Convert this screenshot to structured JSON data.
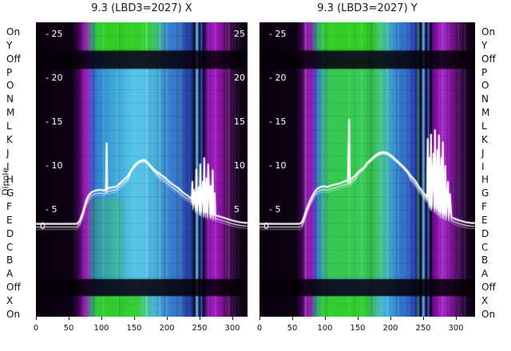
{
  "titles": {
    "left": "9.3 (LBD3=2027) X",
    "right": "9.3 (LBD3=2027) Y"
  },
  "axis": {
    "dipole_label": "Dipole",
    "row_labels": [
      "On",
      "Y",
      "Off",
      "P",
      "O",
      "N",
      "M",
      "L",
      "K",
      "J",
      "I",
      "H",
      "G",
      "F",
      "E",
      "D",
      "C",
      "B",
      "A",
      "Off",
      "X",
      "On"
    ],
    "x_ticks": [
      "0",
      "50",
      "100",
      "150",
      "200",
      "250",
      "300"
    ]
  },
  "scale_labels": {
    "left_panel_left": [
      "- 25",
      "- 20",
      "- 15",
      "- 10",
      "- 5",
      "0"
    ],
    "left_panel_right": [
      "25",
      "20",
      "15",
      "10",
      "5"
    ],
    "right_panel_left": [
      "- 25",
      "- 20",
      "- 15",
      "- 10",
      "- 5",
      "0"
    ]
  },
  "colors": {
    "trace": "#ffffff",
    "green": "#31d01c",
    "title_text": "#1a1a1a",
    "label_text": "#111111",
    "scale_text": "#ffffff",
    "page_bg": "#ffffff"
  },
  "chart_data": {
    "type": "heatmap",
    "description": "Two heatmap panels (X and Y planes) with overlaid white loss traces; y axis is categorical dipole rows, x axis 0-300+, internal scale 0-25",
    "x_ticks": [
      0,
      50,
      100,
      150,
      200,
      250,
      300
    ],
    "scale_ticks": [
      25,
      20,
      15,
      10,
      5,
      0
    ],
    "y_categories": [
      "On",
      "Y",
      "Off",
      "P",
      "O",
      "N",
      "M",
      "L",
      "K",
      "J",
      "I",
      "H",
      "G",
      "F",
      "E",
      "D",
      "C",
      "B",
      "A",
      "Off",
      "X",
      "On"
    ],
    "ylabel": "Dipole",
    "panels": [
      {
        "title": "9.3 (LBD3=2027) X",
        "trace": {
          "name": "loss-trace-x",
          "points": [
            [
              0,
              3.3
            ],
            [
              40,
              3.3
            ],
            [
              63,
              3.3
            ],
            [
              67,
              3.7
            ],
            [
              71,
              4.5
            ],
            [
              76,
              5.8
            ],
            [
              80,
              6.5
            ],
            [
              85,
              6.9
            ],
            [
              91,
              7.1
            ],
            [
              98,
              7.2
            ],
            [
              104,
              7.1
            ],
            [
              107,
              7.3
            ],
            [
              108,
              12.5
            ],
            [
              109,
              7.3
            ],
            [
              116,
              7.5
            ],
            [
              122,
              7.5
            ],
            [
              128,
              7.9
            ],
            [
              134,
              8.3
            ],
            [
              140,
              8.7
            ],
            [
              146,
              9.5
            ],
            [
              152,
              10.1
            ],
            [
              159,
              10.5
            ],
            [
              165,
              10.6
            ],
            [
              168,
              10.5
            ],
            [
              173,
              10.1
            ],
            [
              180,
              9.5
            ],
            [
              189,
              9.0
            ],
            [
              198,
              8.5
            ],
            [
              207,
              7.9
            ],
            [
              217,
              7.4
            ],
            [
              226,
              6.8
            ],
            [
              234,
              6.4
            ],
            [
              238,
              6.1
            ],
            [
              239,
              8.1
            ],
            [
              240,
              5.5
            ],
            [
              241,
              7.2
            ],
            [
              244,
              5.2
            ],
            [
              245,
              9.5
            ],
            [
              246,
              5.0
            ],
            [
              249,
              7.5
            ],
            [
              250,
              4.8
            ],
            [
              251,
              10.1
            ],
            [
              252,
              4.8
            ],
            [
              255,
              8.1
            ],
            [
              256,
              4.6
            ],
            [
              257,
              10.8
            ],
            [
              259,
              4.6
            ],
            [
              261,
              8.5
            ],
            [
              262,
              4.5
            ],
            [
              263,
              10.1
            ],
            [
              266,
              4.5
            ],
            [
              267,
              7.6
            ],
            [
              268,
              4.4
            ],
            [
              270,
              9.4
            ],
            [
              271,
              4.3
            ],
            [
              273,
              6.8
            ],
            [
              274,
              4.3
            ],
            [
              278,
              4.2
            ],
            [
              287,
              4.0
            ],
            [
              299,
              3.7
            ],
            [
              311,
              3.5
            ],
            [
              323,
              3.4
            ]
          ]
        },
        "heatmap_style": {
          "x_gradient": [
            [
              0,
              "#08010b"
            ],
            [
              0.17,
              "#0e0214"
            ],
            [
              0.2,
              "#3a0748"
            ],
            [
              0.225,
              "#8a10a8"
            ],
            [
              0.245,
              "#a818c0"
            ],
            [
              0.265,
              "#3c55c8"
            ],
            [
              0.3,
              "#2f86d0"
            ],
            [
              0.38,
              "#43aede"
            ],
            [
              0.47,
              "#55c4ea"
            ],
            [
              0.56,
              "#49b2e0"
            ],
            [
              0.63,
              "#3884d2"
            ],
            [
              0.69,
              "#2e56be"
            ],
            [
              0.73,
              "#2738a8"
            ],
            [
              0.75,
              "#101268"
            ],
            [
              0.765,
              "#4f9ae8"
            ],
            [
              0.78,
              "#140c52"
            ],
            [
              0.8,
              "#5c0b86"
            ],
            [
              0.835,
              "#a315c2"
            ],
            [
              0.87,
              "#8d12a8"
            ],
            [
              0.91,
              "#4c0758"
            ],
            [
              0.95,
              "#1e0324"
            ],
            [
              1,
              "#07010a"
            ]
          ],
          "green_regions": [
            {
              "x0": 0.23,
              "x1": 0.62,
              "y0": 0.0,
              "y1": 0.103,
              "alpha": 0.95
            },
            {
              "x0": 0.23,
              "x1": 0.56,
              "y0": 0.93,
              "y1": 1.0,
              "alpha": 0.9
            },
            {
              "x0": 0.235,
              "x1": 0.44,
              "y0": 0.6,
              "y1": 0.87,
              "alpha": 0.28
            }
          ],
          "dark_rows": [
            {
              "y0": 0.096,
              "y1": 0.158,
              "alpha": 0.87
            },
            {
              "y0": 0.872,
              "y1": 0.93,
              "alpha": 0.87
            }
          ],
          "stripes": [
            [
              0.742,
              0.01,
              "#05030f",
              0.85
            ],
            [
              0.757,
              0.006,
              "#6db6f2",
              0.9
            ],
            [
              0.768,
              0.008,
              "#070530",
              0.85
            ],
            [
              0.78,
              0.005,
              "#4a8fe0",
              0.8
            ],
            [
              0.789,
              0.01,
              "#05030f",
              0.85
            ],
            [
              0.315,
              0.008,
              "#9fe8fa",
              0.22
            ],
            [
              0.52,
              0.005,
              "#ffffff",
              0.15
            ]
          ]
        }
      },
      {
        "title": "9.3 (LBD3=2027) Y",
        "trace": {
          "name": "loss-trace-y",
          "points": [
            [
              0,
              3.3
            ],
            [
              40,
              3.3
            ],
            [
              61,
              3.3
            ],
            [
              65,
              3.5
            ],
            [
              68,
              4.1
            ],
            [
              73,
              5.2
            ],
            [
              78,
              6.1
            ],
            [
              83,
              6.8
            ],
            [
              88,
              7.3
            ],
            [
              93,
              7.5
            ],
            [
              98,
              7.6
            ],
            [
              104,
              7.5
            ],
            [
              110,
              7.7
            ],
            [
              116,
              7.8
            ],
            [
              122,
              7.9
            ],
            [
              128,
              8.1
            ],
            [
              132,
              8.2
            ],
            [
              135,
              8.2
            ],
            [
              137,
              15.2
            ],
            [
              138,
              8.2
            ],
            [
              140,
              8.4
            ],
            [
              146,
              8.8
            ],
            [
              152,
              9.3
            ],
            [
              159,
              9.7
            ],
            [
              165,
              10.3
            ],
            [
              171,
              10.7
            ],
            [
              177,
              11.1
            ],
            [
              183,
              11.4
            ],
            [
              189,
              11.5
            ],
            [
              195,
              11.4
            ],
            [
              201,
              11.1
            ],
            [
              207,
              10.7
            ],
            [
              213,
              10.3
            ],
            [
              220,
              9.8
            ],
            [
              226,
              9.3
            ],
            [
              232,
              8.7
            ],
            [
              238,
              8.2
            ],
            [
              244,
              7.5
            ],
            [
              250,
              6.9
            ],
            [
              254,
              6.5
            ],
            [
              256,
              6.3
            ],
            [
              257,
              13.0
            ],
            [
              259,
              5.8
            ],
            [
              260,
              10.8
            ],
            [
              261,
              5.5
            ],
            [
              262,
              13.5
            ],
            [
              263,
              5.4
            ],
            [
              266,
              11.3
            ],
            [
              267,
              5.2
            ],
            [
              268,
              14.0
            ],
            [
              270,
              5.0
            ],
            [
              272,
              11.7
            ],
            [
              273,
              4.8
            ],
            [
              274,
              13.4
            ],
            [
              276,
              4.6
            ],
            [
              278,
              10.8
            ],
            [
              279,
              4.5
            ],
            [
              280,
              12.6
            ],
            [
              282,
              4.4
            ],
            [
              284,
              9.9
            ],
            [
              285,
              4.3
            ],
            [
              288,
              8.1
            ],
            [
              289,
              4.2
            ],
            [
              291,
              6.7
            ],
            [
              293,
              4.1
            ],
            [
              298,
              3.9
            ],
            [
              305,
              3.7
            ],
            [
              315,
              3.5
            ],
            [
              324,
              3.4
            ],
            [
              329,
              3.4
            ]
          ]
        },
        "heatmap_style": {
          "x_gradient": [
            [
              0,
              "#08010b"
            ],
            [
              0.17,
              "#0e0214"
            ],
            [
              0.195,
              "#3a0748"
            ],
            [
              0.22,
              "#8a10a8"
            ],
            [
              0.24,
              "#a818c0"
            ],
            [
              0.26,
              "#3c55c8"
            ],
            [
              0.3,
              "#35a0d8"
            ],
            [
              0.4,
              "#43b8e0"
            ],
            [
              0.5,
              "#4cc0e6"
            ],
            [
              0.6,
              "#3da4da"
            ],
            [
              0.67,
              "#2e6ac8"
            ],
            [
              0.72,
              "#2740b0"
            ],
            [
              0.745,
              "#101268"
            ],
            [
              0.76,
              "#4f9ae8"
            ],
            [
              0.775,
              "#140c52"
            ],
            [
              0.8,
              "#5c0b86"
            ],
            [
              0.84,
              "#a315c2"
            ],
            [
              0.88,
              "#8d12a8"
            ],
            [
              0.92,
              "#4c0758"
            ],
            [
              0.96,
              "#1e0324"
            ],
            [
              1,
              "#07010a"
            ]
          ],
          "green_regions": [
            {
              "x0": 0.23,
              "x1": 0.62,
              "y0": 0.0,
              "y1": 0.103,
              "alpha": 0.95
            },
            {
              "x0": 0.26,
              "x1": 0.62,
              "y0": 0.125,
              "y1": 0.87,
              "alpha": 0.72
            },
            {
              "x0": 0.23,
              "x1": 0.58,
              "y0": 0.93,
              "y1": 1.0,
              "alpha": 0.9
            }
          ],
          "dark_rows": [
            {
              "y0": 0.096,
              "y1": 0.158,
              "alpha": 0.87
            },
            {
              "y0": 0.872,
              "y1": 0.93,
              "alpha": 0.87
            }
          ],
          "stripes": [
            [
              0.735,
              0.005,
              "#2ecc1e",
              0.85
            ],
            [
              0.744,
              0.008,
              "#05030f",
              0.85
            ],
            [
              0.757,
              0.006,
              "#6db6f2",
              0.9
            ],
            [
              0.769,
              0.008,
              "#070530",
              0.85
            ],
            [
              0.781,
              0.005,
              "#4a8fe0",
              0.8
            ],
            [
              0.79,
              0.01,
              "#05030f",
              0.85
            ],
            [
              0.47,
              0.006,
              "#bff5c8",
              0.18
            ]
          ]
        }
      }
    ]
  }
}
